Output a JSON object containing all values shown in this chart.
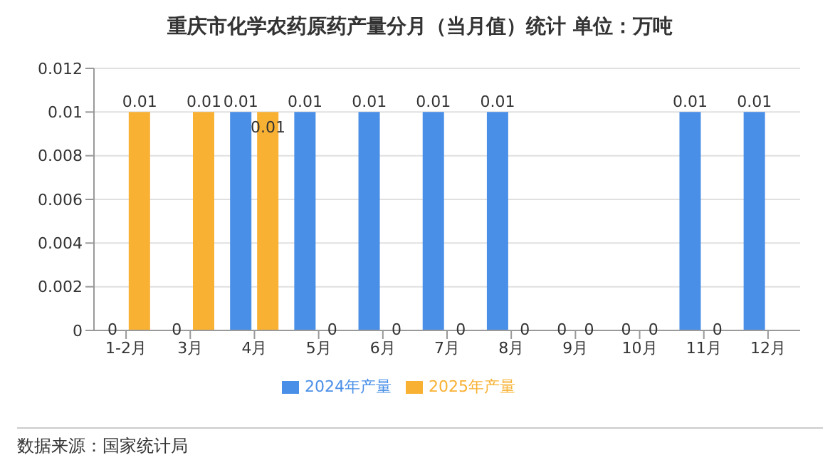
{
  "chart_data": {
    "type": "bar",
    "title": "重庆市化学农药原药产量分月（当月值）统计 单位：万吨",
    "categories": [
      "1-2月",
      "3月",
      "4月",
      "5月",
      "6月",
      "7月",
      "8月",
      "9月",
      "10月",
      "11月",
      "12月"
    ],
    "series": [
      {
        "name": "2024年产量",
        "color": "#4a8fe7",
        "values": [
          0,
          0,
          0.01,
          0.01,
          0.01,
          0.01,
          0.01,
          0,
          0,
          0.01,
          0.01
        ]
      },
      {
        "name": "2025年产量",
        "color": "#f8b133",
        "values": [
          0.01,
          0.01,
          0.01,
          0,
          0,
          0,
          0,
          0,
          0,
          0,
          null
        ]
      }
    ],
    "ylim": [
      0,
      0.012
    ],
    "yticks": [
      0,
      0.002,
      0.004,
      0.006,
      0.008,
      0.01,
      0.012
    ],
    "grid": "y",
    "legend": "bottom",
    "data_labels": true,
    "annotations": [
      "数据来源：国家统计局"
    ]
  }
}
